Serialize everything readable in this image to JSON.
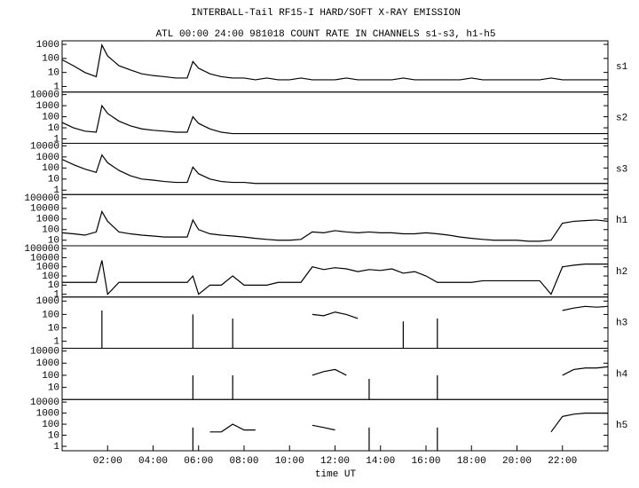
{
  "chart_data": [
    {
      "type": "line",
      "title": "INTERBALL-Tail RF15-I HARD/SOFT X-RAY EMISSION",
      "subtitle": "ATL 00:00 24:00 981018  COUNT RATE IN CHANNELS s1-s3, h1-h5",
      "log_scale": true,
      "xlim": [
        0,
        24
      ],
      "ylim": [
        0.4,
        1800
      ],
      "yticks": [
        1,
        10,
        100,
        1000
      ],
      "x": [
        0,
        0.5,
        1,
        1.5,
        1.75,
        2,
        2.5,
        3,
        3.5,
        4,
        4.5,
        5,
        5.5,
        5.75,
        6,
        6.5,
        7,
        7.5,
        8,
        8.5,
        9,
        9.5,
        10,
        10.5,
        11,
        11.5,
        12,
        12.5,
        13,
        13.5,
        14,
        14.5,
        15,
        15.5,
        16,
        16.5,
        17,
        17.5,
        18,
        18.5,
        19,
        19.5,
        20,
        20.5,
        21,
        21.5,
        22,
        22.5,
        23,
        23.5,
        24
      ],
      "series": [
        {
          "name": "s1",
          "color": "#000000",
          "values": [
            80,
            30,
            10,
            5,
            900,
            150,
            30,
            15,
            8,
            6,
            5,
            4,
            4,
            60,
            20,
            8,
            5,
            4,
            4,
            3,
            4,
            3,
            3,
            4,
            3,
            3,
            3,
            4,
            3,
            3,
            3,
            3,
            4,
            3,
            3,
            3,
            3,
            3,
            4,
            3,
            3,
            3,
            3,
            3,
            3,
            4,
            3,
            3,
            3,
            3,
            3
          ]
        }
      ]
    },
    {
      "type": "line",
      "log_scale": true,
      "xlim": [
        0,
        24
      ],
      "ylim": [
        0.4,
        17000
      ],
      "yticks": [
        1,
        10,
        100,
        1000,
        10000
      ],
      "x": [
        0,
        0.5,
        1,
        1.5,
        1.75,
        2,
        2.5,
        3,
        3.5,
        4,
        4.5,
        5,
        5.5,
        5.75,
        6,
        6.5,
        7,
        7.5,
        8,
        8.5,
        9,
        9.5,
        10,
        10.5,
        11,
        11.5,
        12,
        12.5,
        13,
        13.5,
        14,
        14.5,
        15,
        15.5,
        16,
        16.5,
        17,
        17.5,
        18,
        18.5,
        19,
        19.5,
        20,
        20.5,
        21,
        21.5,
        22,
        22.5,
        23,
        23.5,
        24
      ],
      "series": [
        {
          "name": "s2",
          "color": "#000000",
          "values": [
            30,
            10,
            5,
            4,
            1000,
            200,
            40,
            15,
            8,
            6,
            5,
            4,
            4,
            100,
            25,
            8,
            4,
            3,
            3,
            3,
            3,
            3,
            3,
            3,
            3,
            3,
            3,
            3,
            3,
            3,
            3,
            3,
            3,
            3,
            3,
            3,
            3,
            3,
            3,
            3,
            3,
            3,
            3,
            3,
            3,
            3,
            3,
            3,
            3,
            3,
            3
          ]
        }
      ]
    },
    {
      "type": "line",
      "log_scale": true,
      "xlim": [
        0,
        24
      ],
      "ylim": [
        0.4,
        17000
      ],
      "yticks": [
        1,
        10,
        100,
        1000,
        10000
      ],
      "x": [
        0,
        0.5,
        1,
        1.5,
        1.75,
        2,
        2.5,
        3,
        3.5,
        4,
        4.5,
        5,
        5.5,
        5.75,
        6,
        6.5,
        7,
        7.5,
        8,
        8.5,
        9,
        9.5,
        10,
        10.5,
        11,
        11.5,
        12,
        12.5,
        13,
        13.5,
        14,
        14.5,
        15,
        15.5,
        16,
        16.5,
        17,
        17.5,
        18,
        18.5,
        19,
        19.5,
        20,
        20.5,
        21,
        21.5,
        22,
        22.5,
        23,
        23.5,
        24
      ],
      "series": [
        {
          "name": "s3",
          "color": "#000000",
          "values": [
            600,
            200,
            80,
            40,
            1500,
            300,
            60,
            20,
            10,
            8,
            6,
            5,
            5,
            120,
            30,
            10,
            6,
            5,
            5,
            4,
            4,
            4,
            4,
            4,
            4,
            4,
            4,
            4,
            4,
            4,
            4,
            4,
            4,
            4,
            4,
            4,
            4,
            4,
            4,
            4,
            4,
            4,
            4,
            4,
            4,
            4,
            4,
            4,
            4,
            4,
            4
          ]
        }
      ]
    },
    {
      "type": "line",
      "log_scale": true,
      "xlim": [
        0,
        24
      ],
      "ylim": [
        3,
        200000
      ],
      "yticks": [
        10,
        100,
        1000,
        10000,
        100000
      ],
      "x": [
        0,
        0.5,
        1,
        1.5,
        1.75,
        2,
        2.5,
        3,
        3.5,
        4,
        4.5,
        5,
        5.5,
        5.75,
        6,
        6.5,
        7,
        7.5,
        8,
        8.5,
        9,
        9.5,
        10,
        10.5,
        11,
        11.5,
        12,
        12.5,
        13,
        13.5,
        14,
        14.5,
        15,
        15.5,
        16,
        16.5,
        17,
        17.5,
        18,
        18.5,
        19,
        19.5,
        20,
        20.5,
        21,
        21.5,
        22,
        22.5,
        23,
        23.5,
        24
      ],
      "series": [
        {
          "name": "h1",
          "color": "#000000",
          "values": [
            50,
            40,
            30,
            60,
            5000,
            600,
            60,
            40,
            30,
            25,
            20,
            20,
            20,
            800,
            100,
            40,
            30,
            25,
            20,
            15,
            12,
            10,
            10,
            12,
            60,
            50,
            80,
            60,
            50,
            60,
            50,
            50,
            40,
            40,
            50,
            40,
            30,
            20,
            15,
            12,
            10,
            10,
            10,
            8,
            8,
            10,
            400,
            600,
            700,
            800,
            600
          ]
        }
      ]
    },
    {
      "type": "line",
      "log_scale": true,
      "xlim": [
        0,
        24
      ],
      "ylim": [
        0.5,
        200000
      ],
      "yticks": [
        1,
        10,
        100,
        1000,
        10000,
        100000
      ],
      "x": [
        0,
        0.5,
        1,
        1.5,
        1.75,
        2,
        2.5,
        3,
        3.5,
        4,
        4.5,
        5,
        5.5,
        5.75,
        6,
        6.5,
        7,
        7.5,
        8,
        8.5,
        9,
        9.5,
        10,
        10.5,
        11,
        11.5,
        12,
        12.5,
        13,
        13.5,
        14,
        14.5,
        15,
        15.5,
        16,
        16.5,
        17,
        17.5,
        18,
        18.5,
        19,
        19.5,
        20,
        20.5,
        21,
        21.5,
        22,
        22.5,
        23,
        23.5,
        24
      ],
      "series": [
        {
          "name": "h2",
          "color": "#000000",
          "values": [
            20,
            20,
            20,
            20,
            5000,
            1,
            20,
            20,
            20,
            20,
            20,
            20,
            20,
            100,
            1,
            10,
            10,
            100,
            10,
            10,
            10,
            20,
            20,
            20,
            1000,
            500,
            800,
            600,
            300,
            500,
            400,
            600,
            200,
            300,
            100,
            20,
            20,
            20,
            20,
            30,
            30,
            30,
            30,
            30,
            30,
            1,
            1000,
            1500,
            2000,
            2000,
            2000
          ]
        }
      ]
    },
    {
      "type": "line",
      "log_scale": true,
      "xlim": [
        0,
        24
      ],
      "ylim": [
        0.3,
        2000
      ],
      "yticks": [
        1,
        10,
        100,
        1000
      ],
      "x": [
        0,
        0.5,
        1,
        1.5,
        1.75,
        2,
        2.5,
        3,
        3.5,
        4,
        4.5,
        5,
        5.5,
        5.75,
        6,
        6.5,
        7,
        7.5,
        8,
        8.5,
        9,
        9.5,
        10,
        10.5,
        11,
        11.5,
        12,
        12.5,
        13,
        13.5,
        14,
        14.5,
        15,
        15.5,
        16,
        16.5,
        17,
        17.5,
        18,
        18.5,
        19,
        19.5,
        20,
        20.5,
        21,
        21.5,
        22,
        22.5,
        23,
        23.5,
        24
      ],
      "series": [
        {
          "name": "h3",
          "color": "#000000",
          "values": [
            null,
            null,
            null,
            null,
            200,
            null,
            null,
            null,
            null,
            null,
            null,
            null,
            null,
            100,
            null,
            null,
            null,
            50,
            null,
            null,
            null,
            null,
            null,
            null,
            100,
            80,
            150,
            100,
            50,
            null,
            null,
            null,
            30,
            null,
            null,
            50,
            null,
            null,
            null,
            null,
            null,
            null,
            null,
            null,
            null,
            null,
            200,
            300,
            400,
            350,
            400
          ]
        }
      ]
    },
    {
      "type": "line",
      "log_scale": true,
      "xlim": [
        0,
        24
      ],
      "ylim": [
        1,
        17000
      ],
      "yticks": [
        10,
        100,
        1000,
        10000
      ],
      "x": [
        0,
        0.5,
        1,
        1.5,
        1.75,
        2,
        2.5,
        3,
        3.5,
        4,
        4.5,
        5,
        5.5,
        5.75,
        6,
        6.5,
        7,
        7.5,
        8,
        8.5,
        9,
        9.5,
        10,
        10.5,
        11,
        11.5,
        12,
        12.5,
        13,
        13.5,
        14,
        14.5,
        15,
        15.5,
        16,
        16.5,
        17,
        17.5,
        18,
        18.5,
        19,
        19.5,
        20,
        20.5,
        21,
        21.5,
        22,
        22.5,
        23,
        23.5,
        24
      ],
      "series": [
        {
          "name": "h4",
          "color": "#000000",
          "values": [
            null,
            null,
            null,
            null,
            null,
            null,
            null,
            null,
            null,
            null,
            null,
            null,
            null,
            100,
            null,
            null,
            null,
            100,
            null,
            null,
            null,
            null,
            null,
            null,
            100,
            200,
            300,
            100,
            null,
            50,
            null,
            null,
            null,
            null,
            null,
            100,
            null,
            null,
            null,
            null,
            null,
            null,
            null,
            null,
            null,
            null,
            100,
            300,
            400,
            400,
            500
          ]
        }
      ]
    },
    {
      "type": "line",
      "log_scale": true,
      "xlim": [
        0,
        24
      ],
      "ylim": [
        0.4,
        17000
      ],
      "yticks": [
        1,
        10,
        100,
        1000,
        10000
      ],
      "xlabel": "time UT",
      "xticks": [
        {
          "value": 2,
          "label": "02:00"
        },
        {
          "value": 4,
          "label": "04:00"
        },
        {
          "value": 6,
          "label": "06:00"
        },
        {
          "value": 8,
          "label": "08:00"
        },
        {
          "value": 10,
          "label": "10:00"
        },
        {
          "value": 12,
          "label": "12:00"
        },
        {
          "value": 14,
          "label": "14:00"
        },
        {
          "value": 16,
          "label": "16:00"
        },
        {
          "value": 18,
          "label": "18:00"
        },
        {
          "value": 20,
          "label": "20:00"
        },
        {
          "value": 22,
          "label": "22:00"
        }
      ],
      "x": [
        0,
        0.5,
        1,
        1.5,
        1.75,
        2,
        2.5,
        3,
        3.5,
        4,
        4.5,
        5,
        5.5,
        5.75,
        6,
        6.5,
        7,
        7.5,
        8,
        8.5,
        9,
        9.5,
        10,
        10.5,
        11,
        11.5,
        12,
        12.5,
        13,
        13.5,
        14,
        14.5,
        15,
        15.5,
        16,
        16.5,
        17,
        17.5,
        18,
        18.5,
        19,
        19.5,
        20,
        20.5,
        21,
        21.5,
        22,
        22.5,
        23,
        23.5,
        24
      ],
      "series": [
        {
          "name": "h5",
          "color": "#000000",
          "values": [
            null,
            null,
            null,
            null,
            null,
            null,
            null,
            null,
            null,
            null,
            null,
            null,
            null,
            50,
            null,
            20,
            20,
            100,
            30,
            30,
            null,
            null,
            null,
            null,
            80,
            50,
            30,
            null,
            null,
            50,
            null,
            null,
            null,
            null,
            null,
            50,
            null,
            null,
            null,
            null,
            null,
            null,
            null,
            null,
            null,
            20,
            500,
            800,
            1000,
            1000,
            1000
          ]
        }
      ]
    }
  ]
}
